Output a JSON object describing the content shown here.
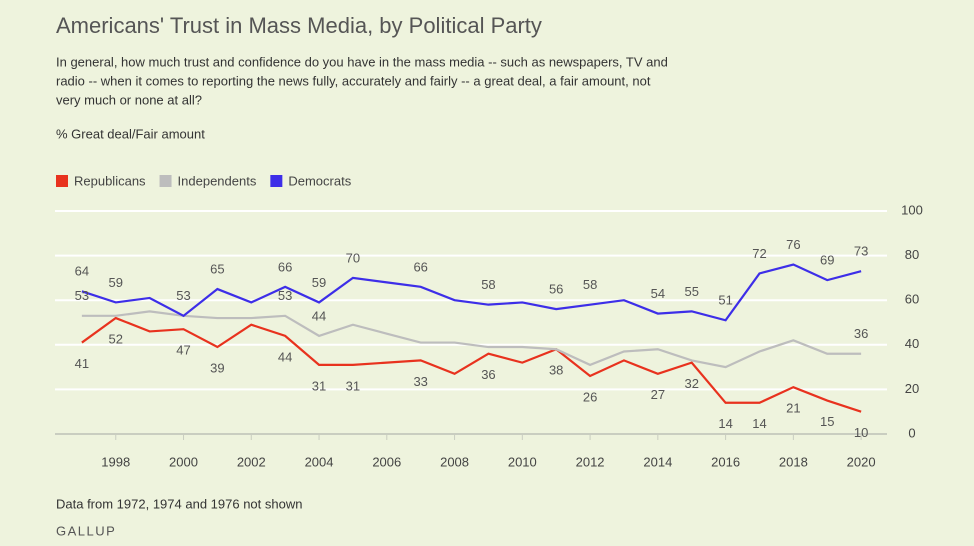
{
  "chart_data": {
    "type": "line",
    "title": "Americans' Trust in Mass Media, by Political Party",
    "subtitle": [
      "In general, how much trust and confidence do you have in the mass media -- such as newspapers, TV and",
      "radio -- when it comes to reporting the news fully, accurately and fairly -- a great deal, a fair amount, not",
      "very much or none at all?"
    ],
    "ylabel": "% Great deal/Fair amount",
    "note": "Data from 1972, 1974 and 1976 not shown",
    "source": "GALLUP",
    "x": [
      1997,
      1998,
      1999,
      2000,
      2001,
      2002,
      2003,
      2004,
      2005,
      2006,
      2007,
      2008,
      2009,
      2010,
      2011,
      2012,
      2013,
      2014,
      2015,
      2016,
      2017,
      2018,
      2019,
      2020
    ],
    "series": [
      {
        "name": "Republicans",
        "color": "#e8321e",
        "values": [
          41,
          52,
          46,
          47,
          39,
          49,
          44,
          31,
          31,
          32,
          33,
          27,
          36,
          32,
          38,
          26,
          33,
          27,
          32,
          14,
          14,
          21,
          15,
          10
        ],
        "value_labels": [
          41,
          52,
          null,
          47,
          39,
          null,
          44,
          31,
          31,
          null,
          33,
          null,
          36,
          null,
          38,
          26,
          null,
          27,
          32,
          14,
          14,
          21,
          15,
          10
        ]
      },
      {
        "name": "Independents",
        "color": "#bdbdbd",
        "values": [
          53,
          53,
          55,
          53,
          52,
          52,
          53,
          44,
          49,
          45,
          41,
          41,
          39,
          39,
          38,
          31,
          37,
          38,
          33,
          30,
          37,
          42,
          36,
          36
        ],
        "value_labels": [
          53,
          null,
          null,
          null,
          null,
          null,
          53,
          44,
          null,
          null,
          null,
          null,
          null,
          null,
          null,
          null,
          null,
          null,
          null,
          null,
          null,
          null,
          null,
          36
        ]
      },
      {
        "name": "Democrats",
        "color": "#3d2ee8",
        "values": [
          64,
          59,
          61,
          53,
          65,
          59,
          66,
          59,
          70,
          68,
          66,
          60,
          58,
          59,
          56,
          58,
          60,
          54,
          55,
          51,
          72,
          76,
          69,
          73
        ],
        "value_labels": [
          64,
          59,
          null,
          53,
          65,
          null,
          66,
          59,
          70,
          null,
          66,
          null,
          58,
          null,
          56,
          58,
          null,
          54,
          55,
          51,
          72,
          76,
          69,
          73
        ]
      }
    ],
    "xlim": [
      1996,
      2021
    ],
    "xticks": [
      1998,
      2000,
      2002,
      2004,
      2006,
      2008,
      2010,
      2012,
      2014,
      2016,
      2018,
      2020
    ],
    "ylim": [
      0,
      100
    ],
    "yticks": [
      0,
      20,
      40,
      60,
      80,
      100
    ],
    "grid": true,
    "legend": "top-left"
  }
}
